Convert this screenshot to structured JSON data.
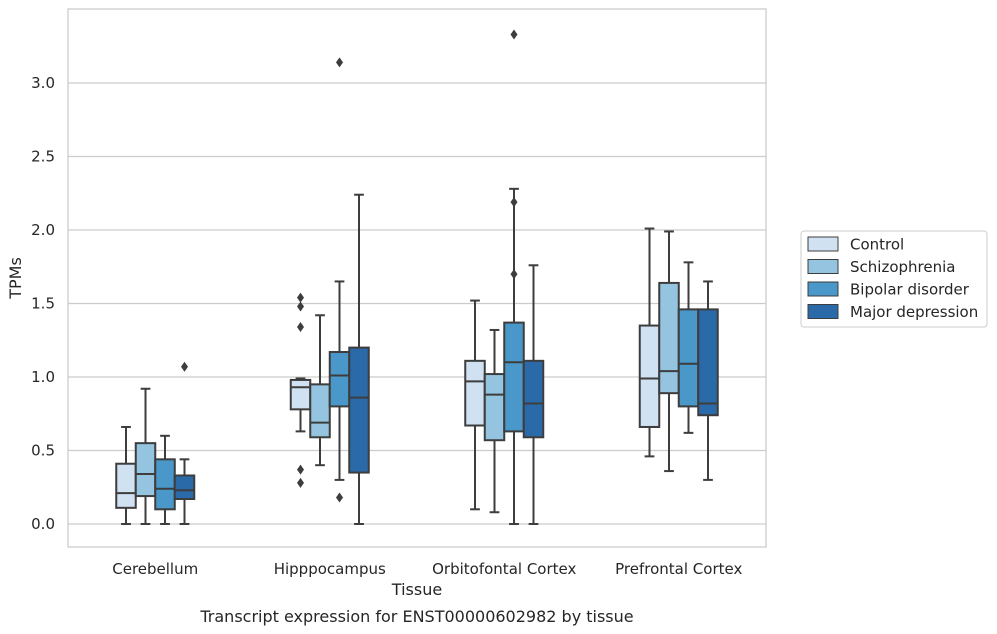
{
  "chart_data": {
    "type": "boxplot",
    "title": "",
    "caption": "Transcript expression for ENST00000602982 by tissue",
    "xlabel": "Tissue",
    "ylabel": "TPMs",
    "ylim": [
      -0.16,
      3.45
    ],
    "yticks": [
      0.0,
      0.5,
      1.0,
      1.5,
      2.0,
      2.5,
      3.0
    ],
    "yticklabels": [
      "0.0",
      "0.5",
      "1.0",
      "1.5",
      "2.0",
      "2.5",
      "3.0"
    ],
    "grid": "horizontal",
    "legend_placement": "right",
    "categories": [
      "Cerebellum",
      "Hipppocampus",
      "Orbitofontal Cortex",
      "Prefrontal Cortex"
    ],
    "series": [
      {
        "name": "Control",
        "color": "#d0e1f2",
        "boxes": [
          {
            "whislo": 0.0,
            "q1": 0.11,
            "med": 0.21,
            "q3": 0.41,
            "whishi": 0.66,
            "fliers": []
          },
          {
            "whislo": 0.63,
            "q1": 0.78,
            "med": 0.93,
            "q3": 0.98,
            "whishi": 0.99,
            "fliers": [
              1.54,
              1.48,
              1.34,
              0.37,
              0.28
            ]
          },
          {
            "whislo": 0.1,
            "q1": 0.67,
            "med": 0.97,
            "q3": 1.11,
            "whishi": 1.52,
            "fliers": []
          },
          {
            "whislo": 0.46,
            "q1": 0.66,
            "med": 0.99,
            "q3": 1.35,
            "whishi": 2.01,
            "fliers": []
          }
        ]
      },
      {
        "name": "Schizophrenia",
        "color": "#94c4df",
        "boxes": [
          {
            "whislo": 0.0,
            "q1": 0.19,
            "med": 0.34,
            "q3": 0.55,
            "whishi": 0.92,
            "fliers": []
          },
          {
            "whislo": 0.4,
            "q1": 0.59,
            "med": 0.69,
            "q3": 0.95,
            "whishi": 1.42,
            "fliers": []
          },
          {
            "whislo": 0.08,
            "q1": 0.57,
            "med": 0.88,
            "q3": 1.02,
            "whishi": 1.32,
            "fliers": []
          },
          {
            "whislo": 0.36,
            "q1": 0.89,
            "med": 1.04,
            "q3": 1.64,
            "whishi": 1.99,
            "fliers": []
          }
        ]
      },
      {
        "name": "Bipolar disorder",
        "color": "#4a98c9",
        "boxes": [
          {
            "whislo": 0.0,
            "q1": 0.1,
            "med": 0.24,
            "q3": 0.44,
            "whishi": 0.6,
            "fliers": []
          },
          {
            "whislo": 0.3,
            "q1": 0.8,
            "med": 1.01,
            "q3": 1.17,
            "whishi": 1.65,
            "fliers": [
              3.14,
              0.18
            ]
          },
          {
            "whislo": 0.0,
            "q1": 0.63,
            "med": 1.1,
            "q3": 1.37,
            "whishi": 2.28,
            "fliers": [
              3.33,
              2.19,
              1.7
            ]
          },
          {
            "whislo": 0.62,
            "q1": 0.8,
            "med": 1.09,
            "q3": 1.46,
            "whishi": 1.78,
            "fliers": []
          }
        ]
      },
      {
        "name": "Major depression",
        "color": "#2b6aa8",
        "boxes": [
          {
            "whislo": 0.0,
            "q1": 0.17,
            "med": 0.23,
            "q3": 0.33,
            "whishi": 0.44,
            "fliers": [
              1.07
            ]
          },
          {
            "whislo": 0.0,
            "q1": 0.35,
            "med": 0.86,
            "q3": 1.2,
            "whishi": 2.24,
            "fliers": []
          },
          {
            "whislo": 0.0,
            "q1": 0.59,
            "med": 0.82,
            "q3": 1.11,
            "whishi": 1.76,
            "fliers": []
          },
          {
            "whislo": 0.3,
            "q1": 0.74,
            "med": 0.82,
            "q3": 1.46,
            "whishi": 1.65,
            "fliers": []
          }
        ]
      }
    ]
  }
}
